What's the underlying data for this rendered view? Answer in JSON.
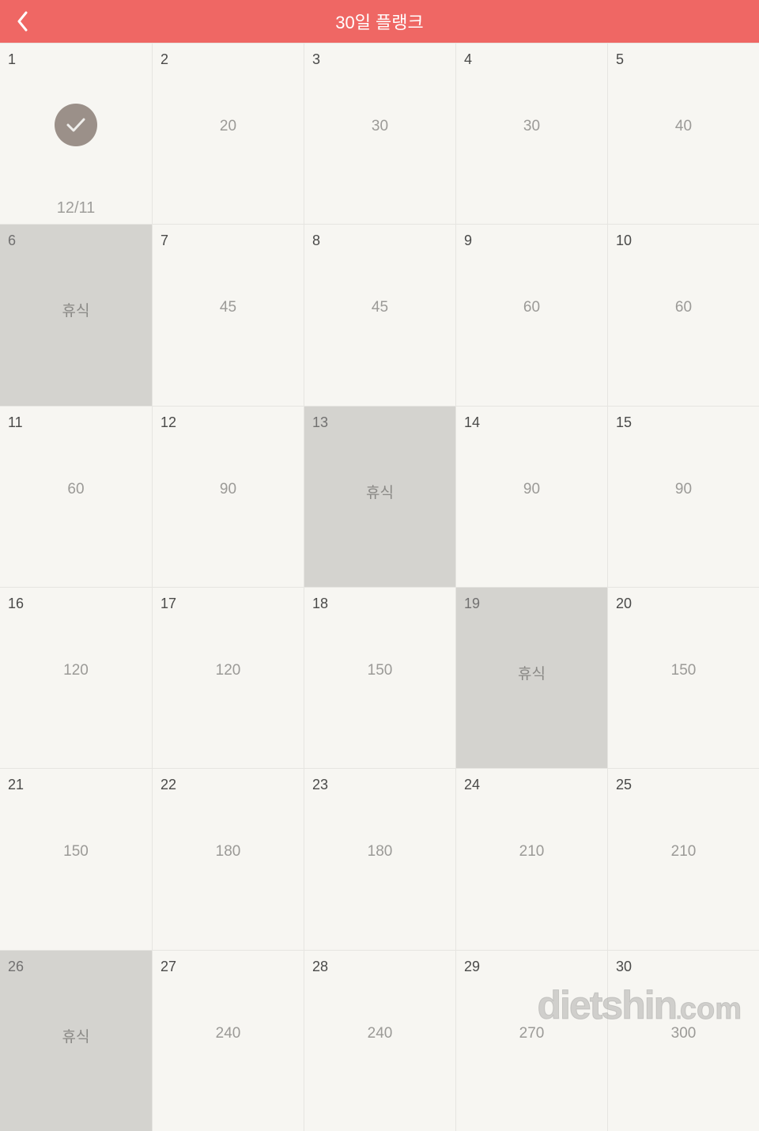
{
  "header": {
    "title": "30일 플랭크",
    "accent_color": "#ef6764",
    "title_color": "#ffffff"
  },
  "colors": {
    "page_bg": "#f7f6f2",
    "cell_border": "#e6e5e1",
    "rest_bg": "#d4d3cf",
    "day_num_color": "#4a4a49",
    "value_color": "#9b9a97",
    "done_badge_bg": "#9b9089",
    "done_check_color": "#efeeeb"
  },
  "calendar": {
    "columns": 5,
    "rows": 6,
    "cells": [
      {
        "day": "1",
        "value": "",
        "done": true,
        "date_label": "12/11"
      },
      {
        "day": "2",
        "value": "20"
      },
      {
        "day": "3",
        "value": "30"
      },
      {
        "day": "4",
        "value": "30"
      },
      {
        "day": "5",
        "value": "40"
      },
      {
        "day": "6",
        "value": "휴식",
        "rest": true
      },
      {
        "day": "7",
        "value": "45"
      },
      {
        "day": "8",
        "value": "45"
      },
      {
        "day": "9",
        "value": "60"
      },
      {
        "day": "10",
        "value": "60"
      },
      {
        "day": "11",
        "value": "60"
      },
      {
        "day": "12",
        "value": "90"
      },
      {
        "day": "13",
        "value": "휴식",
        "rest": true
      },
      {
        "day": "14",
        "value": "90"
      },
      {
        "day": "15",
        "value": "90"
      },
      {
        "day": "16",
        "value": "120"
      },
      {
        "day": "17",
        "value": "120"
      },
      {
        "day": "18",
        "value": "150"
      },
      {
        "day": "19",
        "value": "휴식",
        "rest": true
      },
      {
        "day": "20",
        "value": "150"
      },
      {
        "day": "21",
        "value": "150"
      },
      {
        "day": "22",
        "value": "180"
      },
      {
        "day": "23",
        "value": "180"
      },
      {
        "day": "24",
        "value": "210"
      },
      {
        "day": "25",
        "value": "210"
      },
      {
        "day": "26",
        "value": "휴식",
        "rest": true
      },
      {
        "day": "27",
        "value": "240"
      },
      {
        "day": "28",
        "value": "240"
      },
      {
        "day": "29",
        "value": "270"
      },
      {
        "day": "30",
        "value": "300"
      }
    ]
  },
  "watermark": {
    "text_main": "dietshin",
    "text_suffix": "com"
  }
}
